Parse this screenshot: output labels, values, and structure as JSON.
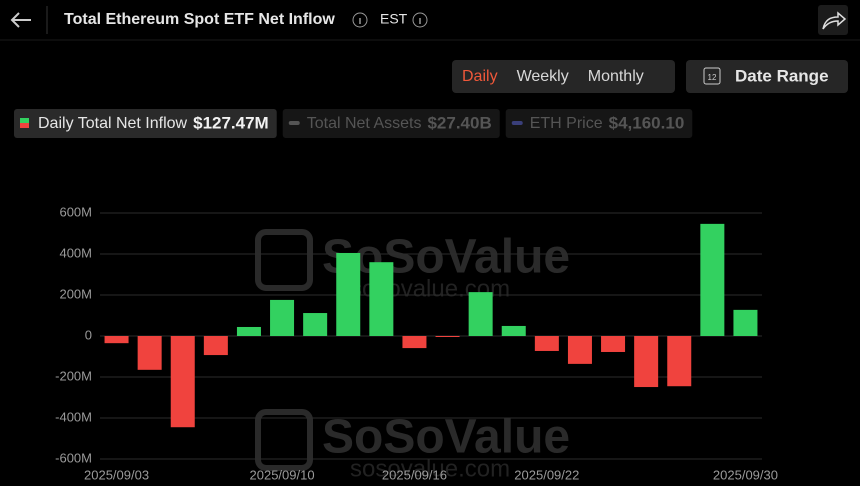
{
  "header": {
    "title": "Total Ethereum Spot ETF Net Inflow",
    "timezone": "EST",
    "tabs": [
      "Daily",
      "Weekly",
      "Monthly"
    ],
    "active_tab": 0,
    "date_range": "Date Range",
    "calendar_day": "12"
  },
  "summary": [
    {
      "name": "Daily Total Net Inflow",
      "value": "$127.47M",
      "color": "#33d160",
      "active": true
    },
    {
      "name": "Total Net Assets",
      "value": "$27.40B",
      "color": "#555555",
      "active": false
    },
    {
      "name": "ETH Price",
      "value": "$4,160.10",
      "color": "#3a3f7a",
      "active": false
    }
  ],
  "watermark": {
    "brand": "SoSoValue",
    "site": "sosovalue.com"
  },
  "chart_data": {
    "type": "bar",
    "categories": [
      "2025/09/03",
      null,
      null,
      null,
      null,
      "2025/09/10",
      null,
      null,
      null,
      "2025/09/16",
      null,
      null,
      null,
      "2025/09/22",
      null,
      null,
      null,
      null,
      null,
      "2025/09/30"
    ],
    "series": [
      {
        "name": "Daily Total Net Inflow",
        "color": "#33d160",
        "negative_color": "#f0433e",
        "values": [
          -35,
          -165,
          -445,
          -93,
          44,
          176,
          112,
          405,
          360,
          -59,
          -1,
          214,
          49,
          -73,
          -136,
          -78,
          -249,
          -245,
          547,
          127.47
        ]
      }
    ],
    "ylim": [
      -600,
      600
    ],
    "yticks": [
      {
        "value": -600,
        "label": "-600M"
      },
      {
        "value": -400,
        "label": "-400M"
      },
      {
        "value": -200,
        "label": "-200M"
      },
      0,
      {
        "value": 200,
        "label": "200M"
      },
      {
        "value": 400,
        "label": "400M"
      },
      {
        "value": 600,
        "label": "600M"
      }
    ],
    "grid": true
  }
}
